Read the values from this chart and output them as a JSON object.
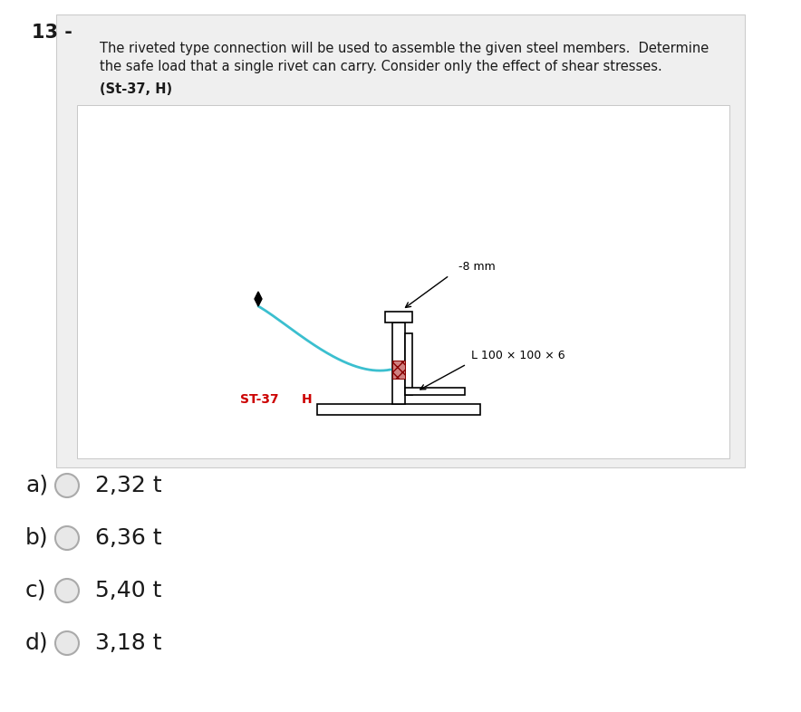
{
  "title_number": "13 -",
  "question_text_line1": "The riveted type connection will be used to assemble the given steel members.  Determine",
  "question_text_line2": "the safe load that a single rivet can carry. Consider only the effect of shear stresses.",
  "params": "(St-37, H)",
  "label_8mm": "-8 mm",
  "label_L": "L 100 × 100 × 6",
  "label_ST37": "ST-37",
  "label_H": "H",
  "options": [
    "a)",
    "b)",
    "c)",
    "d)"
  ],
  "option_values": [
    "2,32 t",
    "6,36 t",
    "5,40 t",
    "3,18 t"
  ],
  "white": "#ffffff",
  "panel_bg": "#efefef",
  "inner_bg": "#f8f8f8",
  "text_color": "#1a1a1a",
  "red_color": "#cc0000",
  "circle_edge": "#b0b0b0",
  "cyan_color": "#3bbfcf",
  "fig_width": 8.84,
  "fig_height": 7.86
}
